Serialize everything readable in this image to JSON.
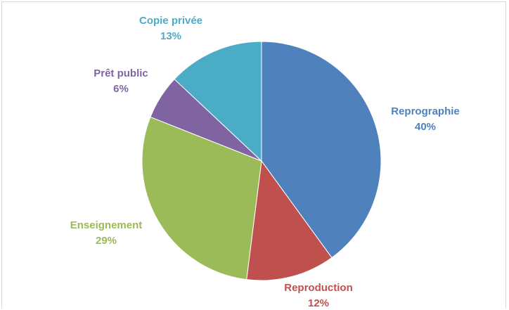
{
  "chart_data": {
    "type": "pie",
    "title": "",
    "slices": [
      {
        "label": "Reprographie",
        "value": 40,
        "value_label": "40%",
        "color": "#4F81BD"
      },
      {
        "label": "Reproduction",
        "value": 12,
        "value_label": "12%",
        "color": "#C0504D"
      },
      {
        "label": "Enseignement",
        "value": 29,
        "value_label": "29%",
        "color": "#9BBB59"
      },
      {
        "label": "Prêt public",
        "value": 6,
        "value_label": "6%",
        "color": "#8064A2"
      },
      {
        "label": "Copie privée",
        "value": 13,
        "value_label": "13%",
        "color": "#4BACC6"
      }
    ],
    "start": "top",
    "direction": "clockwise",
    "legend": "none"
  }
}
